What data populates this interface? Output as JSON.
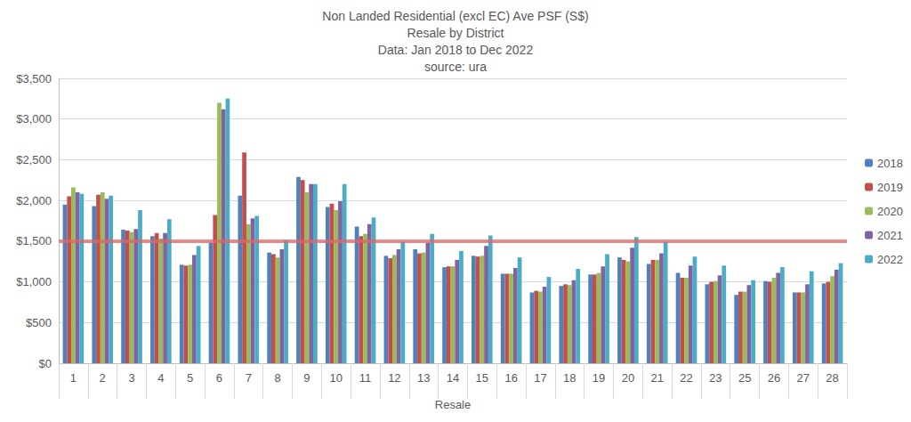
{
  "chart_data": {
    "type": "bar",
    "title": "Non Landed Residential (excl EC) Ave PSF (S$)",
    "subtitle": [
      "Resale by District",
      "Data: Jan 2018 to Dec 2022",
      "source: ura"
    ],
    "x_label": "Resale",
    "categories": [
      "1",
      "2",
      "3",
      "4",
      "5",
      "6",
      "7",
      "8",
      "9",
      "10",
      "11",
      "12",
      "13",
      "14",
      "15",
      "16",
      "17",
      "18",
      "19",
      "20",
      "21",
      "22",
      "23",
      "25",
      "26",
      "27",
      "28"
    ],
    "series": [
      {
        "name": "2018",
        "color": "#4f81bd",
        "values": [
          1950,
          1930,
          1640,
          1560,
          1210,
          1480,
          2060,
          1360,
          2290,
          1920,
          1680,
          1320,
          1400,
          1180,
          1320,
          1100,
          870,
          950,
          1090,
          1300,
          1220,
          1110,
          970,
          840,
          1010,
          870,
          980
        ]
      },
      {
        "name": "2019",
        "color": "#c0504d",
        "values": [
          2050,
          2070,
          1630,
          1600,
          1200,
          1820,
          2590,
          1340,
          2250,
          1960,
          1560,
          1290,
          1350,
          1190,
          1310,
          1100,
          890,
          970,
          1090,
          1270,
          1270,
          1050,
          1000,
          880,
          1000,
          870,
          1000
        ]
      },
      {
        "name": "2020",
        "color": "#9bbb59",
        "values": [
          2160,
          2100,
          1610,
          1530,
          1210,
          3200,
          1710,
          1300,
          2100,
          1880,
          1590,
          1330,
          1360,
          1190,
          1320,
          1100,
          880,
          960,
          1110,
          1250,
          1270,
          1050,
          1010,
          880,
          1050,
          870,
          1070
        ]
      },
      {
        "name": "2021",
        "color": "#8064a2",
        "values": [
          2100,
          2020,
          1650,
          1600,
          1330,
          3120,
          1780,
          1400,
          2200,
          1990,
          1710,
          1400,
          1480,
          1270,
          1440,
          1170,
          940,
          1020,
          1190,
          1420,
          1350,
          1200,
          1080,
          960,
          1110,
          970,
          1150
        ]
      },
      {
        "name": "2022",
        "color": "#4bacc6",
        "values": [
          2080,
          2060,
          1880,
          1770,
          1440,
          3250,
          1810,
          1510,
          2200,
          2200,
          1790,
          1490,
          1590,
          1380,
          1570,
          1300,
          1060,
          1160,
          1340,
          1550,
          1490,
          1310,
          1200,
          1020,
          1180,
          1130,
          1230
        ]
      }
    ],
    "ylim": [
      0,
      3500
    ],
    "yticks": [
      {
        "value": 0,
        "label": "$0"
      },
      {
        "value": 500,
        "label": "$500"
      },
      {
        "value": 1000,
        "label": "$1,000"
      },
      {
        "value": 1500,
        "label": "$1,500"
      },
      {
        "value": 2000,
        "label": "$2,000"
      },
      {
        "value": 2500,
        "label": "$2,500"
      },
      {
        "value": 3000,
        "label": "$3,000"
      },
      {
        "value": 3500,
        "label": "$3,500"
      }
    ],
    "reference_lines": [
      {
        "y": 1500,
        "color": "#e06666"
      }
    ],
    "grid": true,
    "legend": "right"
  }
}
